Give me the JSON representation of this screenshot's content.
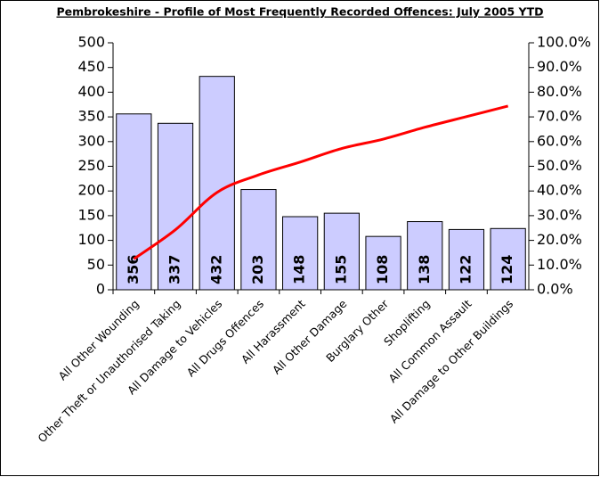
{
  "chart_data": {
    "type": "bar",
    "title": "Pembrokeshire - Profile of Most Frequently Recorded Offences: July 2005 YTD",
    "categories": [
      "All Other Wounding",
      "Other Theft or Unauthorised Taking",
      "All Damage to Vehicles",
      "All Drugs Offences",
      "All Harassment",
      "All Other Damage",
      "Burglary Other",
      "Shoplifting",
      "All Common Assault",
      "All Damage to Other Buildings"
    ],
    "series": [
      {
        "type": "bar",
        "color": "#ccccff",
        "values": [
          356,
          337,
          432,
          203,
          148,
          155,
          108,
          138,
          122,
          124
        ]
      },
      {
        "type": "line",
        "color": "#ff0000",
        "axis": "y2",
        "values": [
          12.5,
          24.3,
          39.4,
          46.5,
          51.7,
          57.2,
          61.0,
          65.8,
          70.1,
          74.4
        ]
      }
    ],
    "ylim": [
      0,
      500
    ],
    "yticks": [
      0,
      50,
      100,
      150,
      200,
      250,
      300,
      350,
      400,
      450,
      500
    ],
    "y2lim": [
      0,
      100
    ],
    "y2ticks": [
      {
        "value": 0,
        "label": "0.0%"
      },
      {
        "value": 10,
        "label": "10.0%"
      },
      {
        "value": 20,
        "label": "20.0%"
      },
      {
        "value": 30,
        "label": "30.0%"
      },
      {
        "value": 40,
        "label": "40.0%"
      },
      {
        "value": 50,
        "label": "50.0%"
      },
      {
        "value": 60,
        "label": "60.0%"
      },
      {
        "value": 70,
        "label": "70.0%"
      },
      {
        "value": 80,
        "label": "80.0%"
      },
      {
        "value": 90,
        "label": "90.0%"
      },
      {
        "value": 100,
        "label": "100.0%"
      }
    ],
    "grid": false
  }
}
